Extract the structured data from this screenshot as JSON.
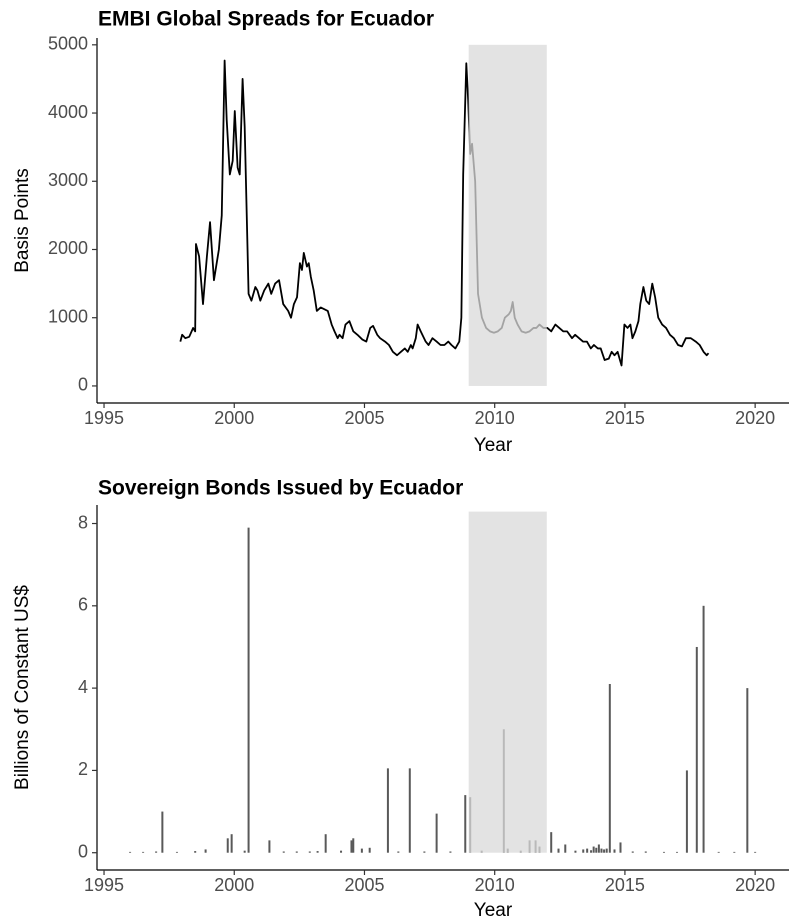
{
  "chart_data": [
    {
      "type": "line",
      "title": "EMBI Global Spreads for Ecuador",
      "x_label": "Year",
      "y_label": "Basis Points",
      "color": "#000000",
      "shade": {
        "x": [
          2009,
          2012
        ],
        "y": [
          0,
          5000
        ],
        "color": "#d9d9d9"
      },
      "xlim": [
        1994.73,
        2021.3
      ],
      "ylim": [
        -250,
        5100
      ],
      "xticks": [
        1995,
        2000,
        2005,
        2010,
        2015,
        2020
      ],
      "yticks": [
        0,
        1000,
        2000,
        3000,
        4000,
        5000
      ],
      "x": [
        1997.93,
        1998.0,
        1998.12,
        1998.27,
        1998.42,
        1998.5,
        1998.53,
        1998.65,
        1998.8,
        1998.95,
        1999.07,
        1999.22,
        1999.41,
        1999.52,
        1999.63,
        1999.71,
        1999.83,
        1999.94,
        2000.02,
        2000.13,
        2000.21,
        2000.32,
        2000.4,
        2000.55,
        2000.66,
        2000.81,
        2000.89,
        2001.0,
        2001.15,
        2001.31,
        2001.42,
        2001.57,
        2001.72,
        2001.88,
        2002.07,
        2002.18,
        2002.29,
        2002.41,
        2002.52,
        2002.6,
        2002.67,
        2002.79,
        2002.86,
        2002.94,
        2003.05,
        2003.17,
        2003.32,
        2003.59,
        2003.74,
        2003.85,
        2003.97,
        2004.04,
        2004.16,
        2004.27,
        2004.42,
        2004.57,
        2004.73,
        2004.92,
        2005.07,
        2005.22,
        2005.33,
        2005.49,
        2005.6,
        2005.79,
        2005.94,
        2006.09,
        2006.25,
        2006.4,
        2006.55,
        2006.66,
        2006.78,
        2006.85,
        2006.97,
        2007.04,
        2007.16,
        2007.35,
        2007.46,
        2007.61,
        2007.77,
        2007.92,
        2008.07,
        2008.22,
        2008.34,
        2008.49,
        2008.64,
        2008.72,
        2008.79,
        2008.91,
        2008.98,
        2009.06,
        2009.13,
        2009.25,
        2009.36,
        2009.51,
        2009.67,
        2009.82,
        2009.97,
        2010.12,
        2010.27,
        2010.39,
        2010.54,
        2010.62,
        2010.69,
        2010.77,
        2010.88,
        2011.03,
        2011.19,
        2011.34,
        2011.49,
        2011.6,
        2011.72,
        2011.87,
        2012.02,
        2012.17,
        2012.33,
        2012.48,
        2012.63,
        2012.78,
        2012.97,
        2013.09,
        2013.24,
        2013.39,
        2013.54,
        2013.69,
        2013.81,
        2013.96,
        2014.07,
        2014.22,
        2014.38,
        2014.49,
        2014.6,
        2014.72,
        2014.87,
        2014.98,
        2015.1,
        2015.21,
        2015.29,
        2015.4,
        2015.52,
        2015.59,
        2015.71,
        2015.82,
        2015.93,
        2016.05,
        2016.16,
        2016.28,
        2016.43,
        2016.58,
        2016.73,
        2016.88,
        2017.04,
        2017.19,
        2017.34,
        2017.53,
        2017.72,
        2017.87,
        2018.02,
        2018.14,
        2018.21
      ],
      "values": [
        650,
        750,
        700,
        720,
        850,
        800,
        2080,
        1900,
        1200,
        1900,
        2400,
        1550,
        2000,
        2500,
        4770,
        3900,
        3100,
        3300,
        4030,
        3200,
        3100,
        4500,
        3800,
        1350,
        1250,
        1450,
        1400,
        1250,
        1400,
        1500,
        1350,
        1500,
        1550,
        1200,
        1100,
        1000,
        1200,
        1300,
        1800,
        1700,
        1950,
        1750,
        1800,
        1600,
        1400,
        1100,
        1150,
        1100,
        900,
        800,
        700,
        750,
        700,
        900,
        950,
        800,
        750,
        680,
        650,
        850,
        880,
        750,
        700,
        650,
        600,
        500,
        450,
        500,
        550,
        500,
        600,
        550,
        700,
        900,
        800,
        650,
        600,
        700,
        650,
        600,
        600,
        650,
        600,
        550,
        650,
        1000,
        3100,
        4730,
        4200,
        3400,
        3550,
        3000,
        1350,
        1000,
        850,
        800,
        780,
        800,
        850,
        1000,
        1050,
        1100,
        1230,
        1000,
        900,
        800,
        780,
        800,
        850,
        850,
        900,
        850,
        850,
        800,
        900,
        850,
        800,
        800,
        700,
        750,
        700,
        650,
        650,
        550,
        600,
        550,
        550,
        380,
        400,
        500,
        450,
        500,
        300,
        900,
        850,
        900,
        700,
        800,
        950,
        1200,
        1450,
        1250,
        1200,
        1500,
        1300,
        1000,
        900,
        850,
        750,
        700,
        600,
        580,
        700,
        700,
        650,
        600,
        500,
        450,
        480
      ]
    },
    {
      "type": "bar",
      "title": "Sovereign Bonds Issued by Ecuador",
      "x_label": "Year",
      "y_label": "Billions of Constant US$",
      "color": "#595959",
      "shade": {
        "x": [
          2009,
          2012
        ],
        "y": [
          0,
          8.29
        ],
        "color": "#d9d9d9"
      },
      "xlim": [
        1994.73,
        2021.3
      ],
      "ylim": [
        -0.42,
        8.45
      ],
      "xticks": [
        1995,
        2000,
        2005,
        2010,
        2015,
        2020
      ],
      "yticks": [
        0,
        2,
        4,
        6,
        8
      ],
      "x": [
        1996.0,
        1996.5,
        1997.0,
        1997.24,
        1997.8,
        1998.5,
        1998.9,
        1999.75,
        1999.9,
        2000.4,
        2000.55,
        2001.35,
        2001.9,
        2002.4,
        2002.9,
        2003.2,
        2003.51,
        2004.1,
        2004.5,
        2004.57,
        2004.9,
        2005.2,
        2005.9,
        2006.3,
        2006.74,
        2007.3,
        2007.77,
        2008.3,
        2008.87,
        2009.06,
        2009.5,
        2010.35,
        2010.5,
        2011.0,
        2011.34,
        2011.57,
        2011.72,
        2012.17,
        2012.45,
        2012.71,
        2013.1,
        2013.4,
        2013.55,
        2013.7,
        2013.8,
        2013.9,
        2014.0,
        2014.1,
        2014.2,
        2014.3,
        2014.42,
        2014.6,
        2014.83,
        2015.3,
        2015.8,
        2016.5,
        2017.0,
        2017.38,
        2017.76,
        2018.02,
        2018.6,
        2019.2,
        2019.7,
        2020.0
      ],
      "values": [
        0.02,
        0.02,
        0.03,
        1.0,
        0.02,
        0.04,
        0.08,
        0.35,
        0.45,
        0.05,
        7.9,
        0.3,
        0.03,
        0.03,
        0.03,
        0.04,
        0.45,
        0.05,
        0.3,
        0.35,
        0.1,
        0.12,
        2.05,
        0.03,
        2.05,
        0.03,
        0.95,
        0.03,
        1.4,
        1.35,
        0.05,
        3.0,
        0.1,
        0.05,
        0.3,
        0.3,
        0.15,
        0.5,
        0.1,
        0.2,
        0.05,
        0.08,
        0.1,
        0.06,
        0.15,
        0.12,
        0.2,
        0.1,
        0.08,
        0.1,
        4.1,
        0.08,
        0.25,
        0.03,
        0.03,
        0.02,
        0.02,
        2.0,
        5.0,
        6.0,
        0.02,
        0.02,
        4.0,
        0.02
      ]
    }
  ]
}
